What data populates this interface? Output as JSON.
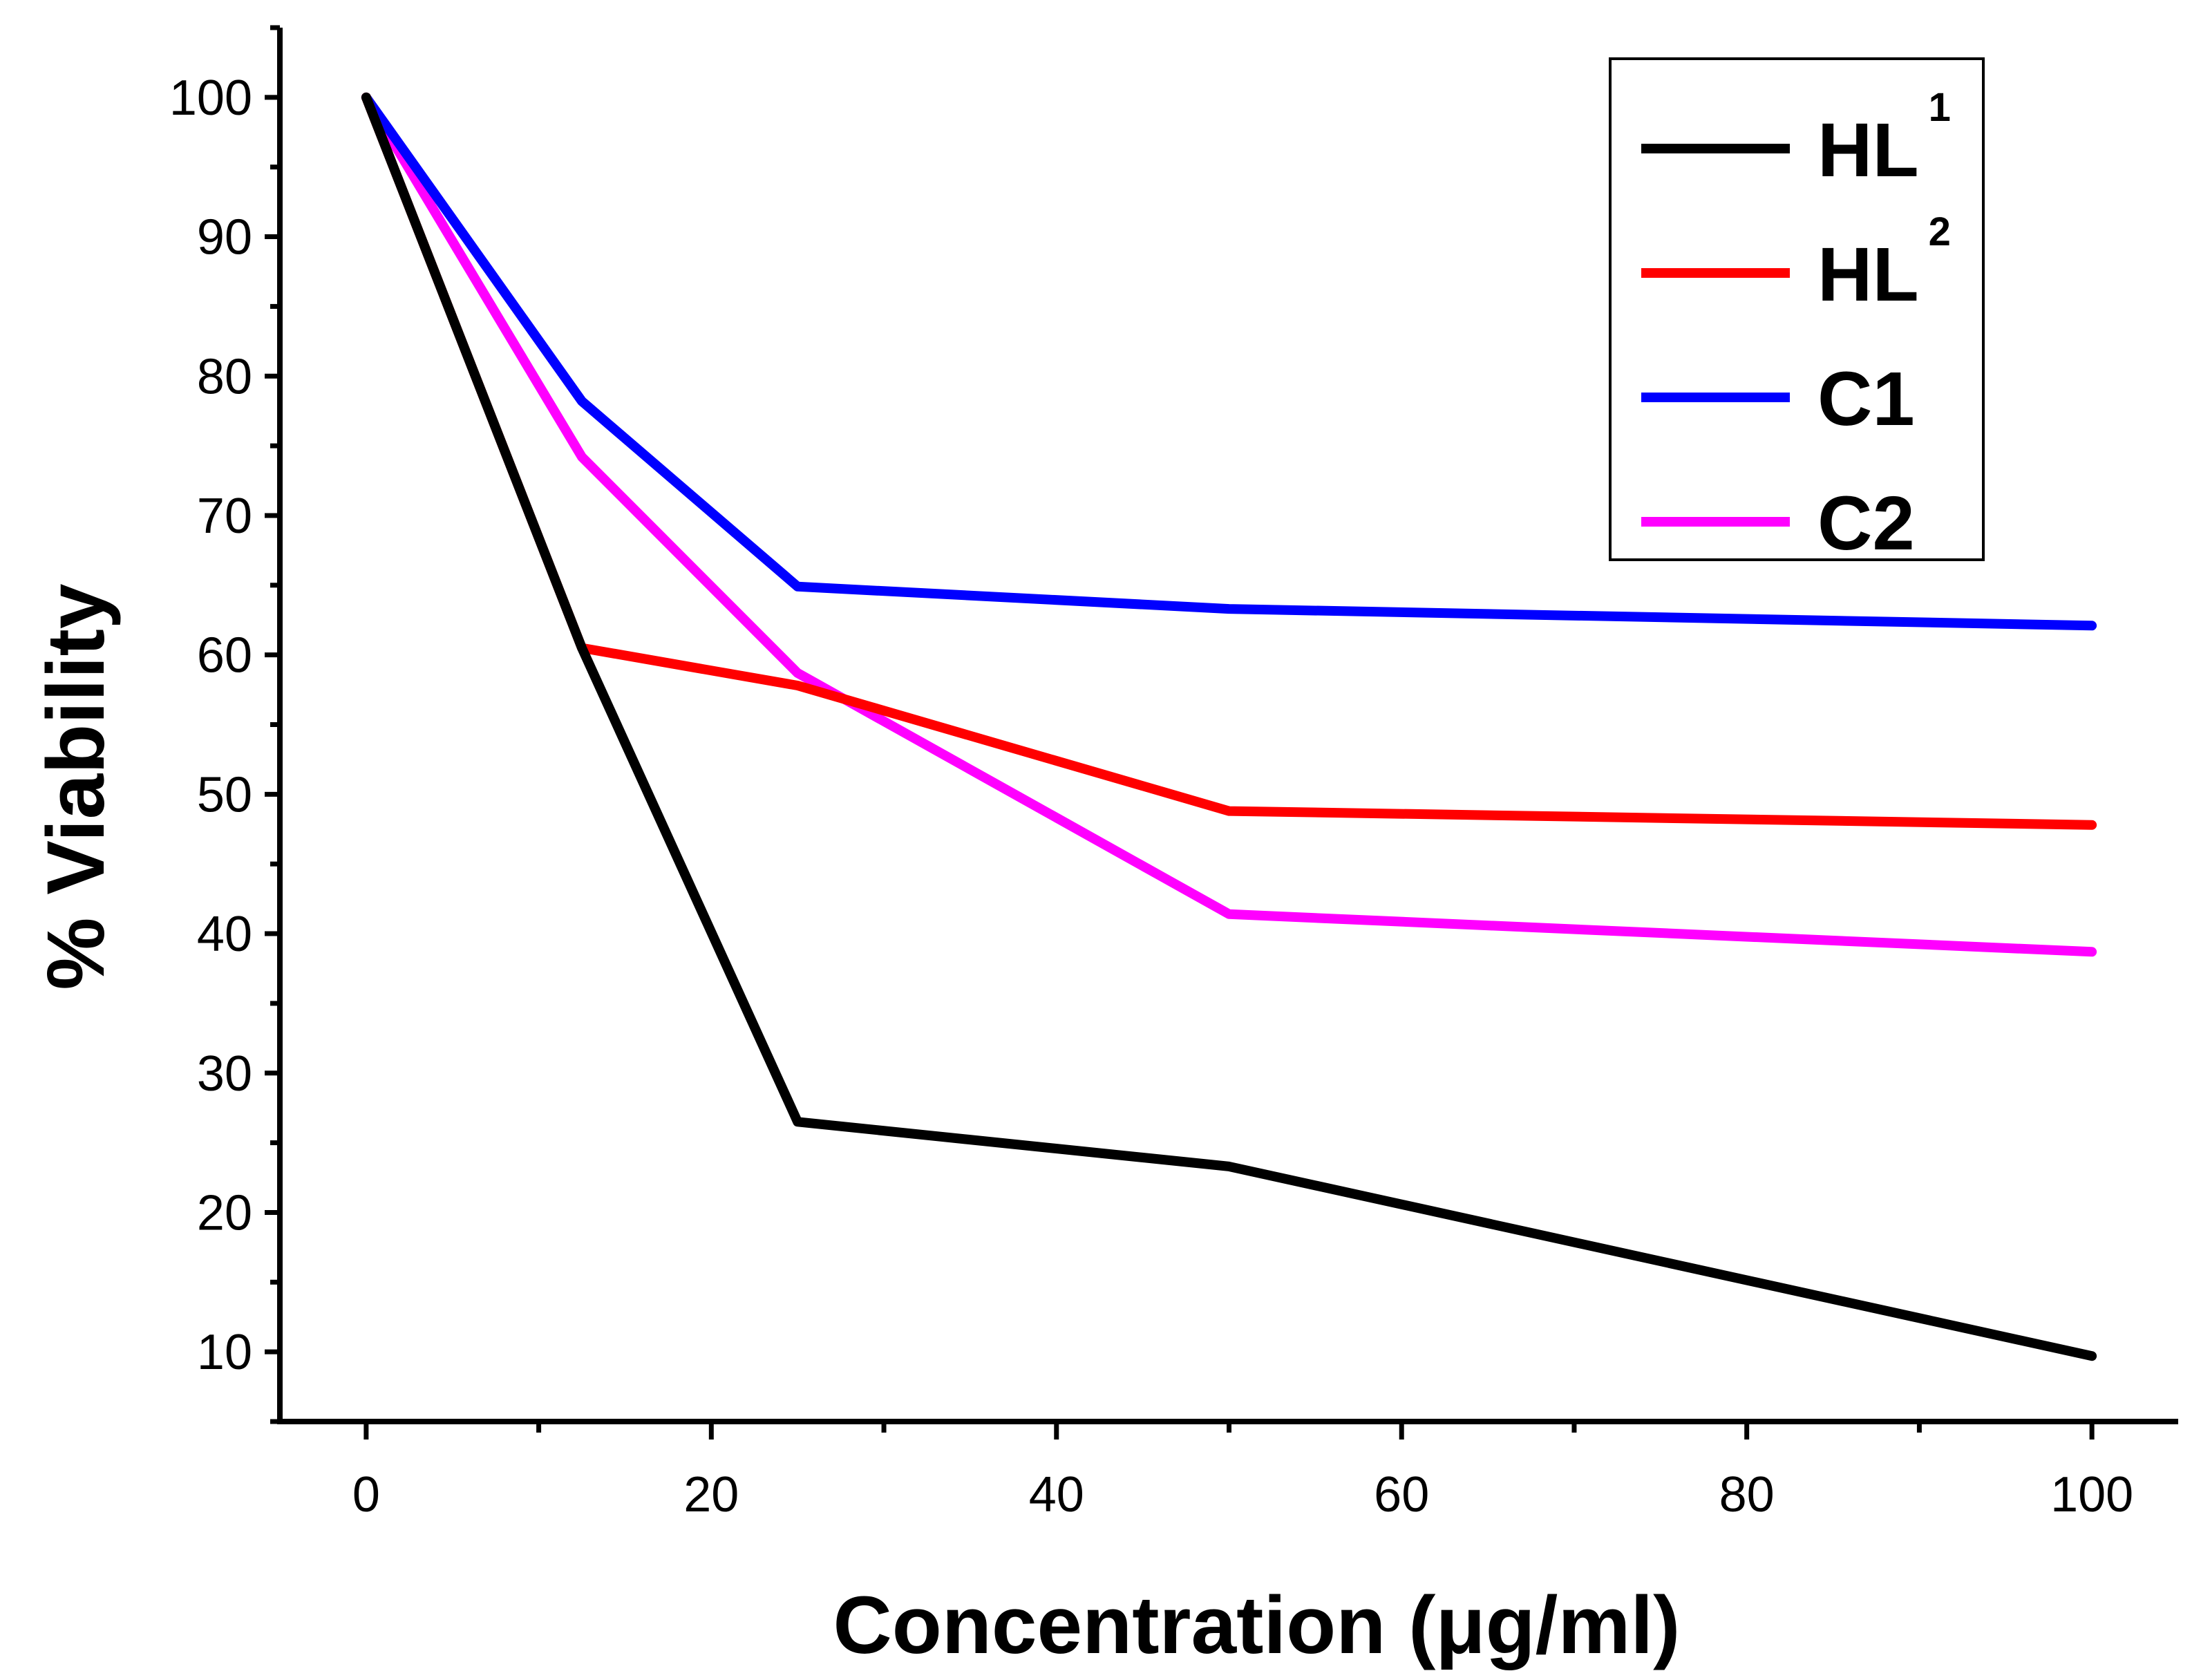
{
  "chart_data": {
    "type": "line",
    "title": "",
    "xlabel": "Concentration (μg/ml)",
    "ylabel": "% Viability",
    "xlim": [
      -5,
      105
    ],
    "ylim": [
      5,
      105
    ],
    "xticks": [
      0,
      20,
      40,
      60,
      80,
      100
    ],
    "yticks": [
      10,
      20,
      30,
      40,
      50,
      60,
      70,
      80,
      90,
      100
    ],
    "x": [
      0,
      12.5,
      25,
      50,
      100
    ],
    "legend_position": "top-right",
    "series": [
      {
        "name": "HL",
        "sup": "1",
        "color": "#000000",
        "values": [
          100,
          60.5,
          26.5,
          23.3,
          9.7
        ]
      },
      {
        "name": "HL",
        "sup": "2",
        "color": "#ff0000",
        "values": [
          100,
          60.5,
          57.8,
          48.8,
          47.8
        ]
      },
      {
        "name": "C1",
        "sup": "",
        "color": "#0000ff",
        "values": [
          100,
          78.2,
          64.9,
          63.3,
          62.1
        ]
      },
      {
        "name": "C2",
        "sup": "",
        "color": "#ff00ff",
        "values": [
          100,
          74.2,
          58.7,
          41.4,
          38.7
        ]
      }
    ]
  }
}
